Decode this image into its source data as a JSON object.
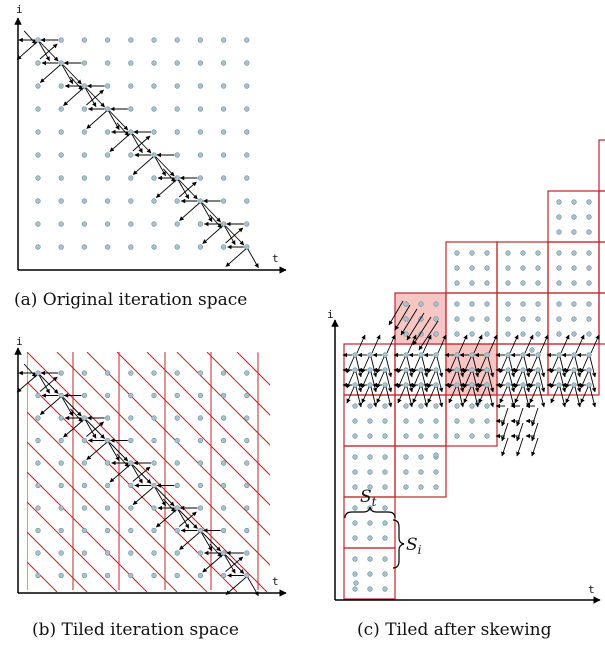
{
  "panels": [
    {
      "id": "a",
      "caption": "(a) Original iteration space",
      "axis_x": "t",
      "axis_y": "i"
    },
    {
      "id": "b",
      "caption": "(b) Tiled iteration space",
      "axis_x": "t",
      "axis_y": "i"
    },
    {
      "id": "c",
      "caption": "(c) Tiled after skewing",
      "axis_x": "t",
      "axis_y": "i",
      "labels": {
        "s_t": "S",
        "s_t_sub": "t",
        "s_i": "S",
        "s_i_sub": "i"
      }
    }
  ],
  "colors": {
    "point_fill": "#a7c2cc",
    "point_stroke": "#6a8a96",
    "tile_border": "#c0242b",
    "tile_highlight": "#f5c6c4",
    "arrow": "#000000"
  }
}
